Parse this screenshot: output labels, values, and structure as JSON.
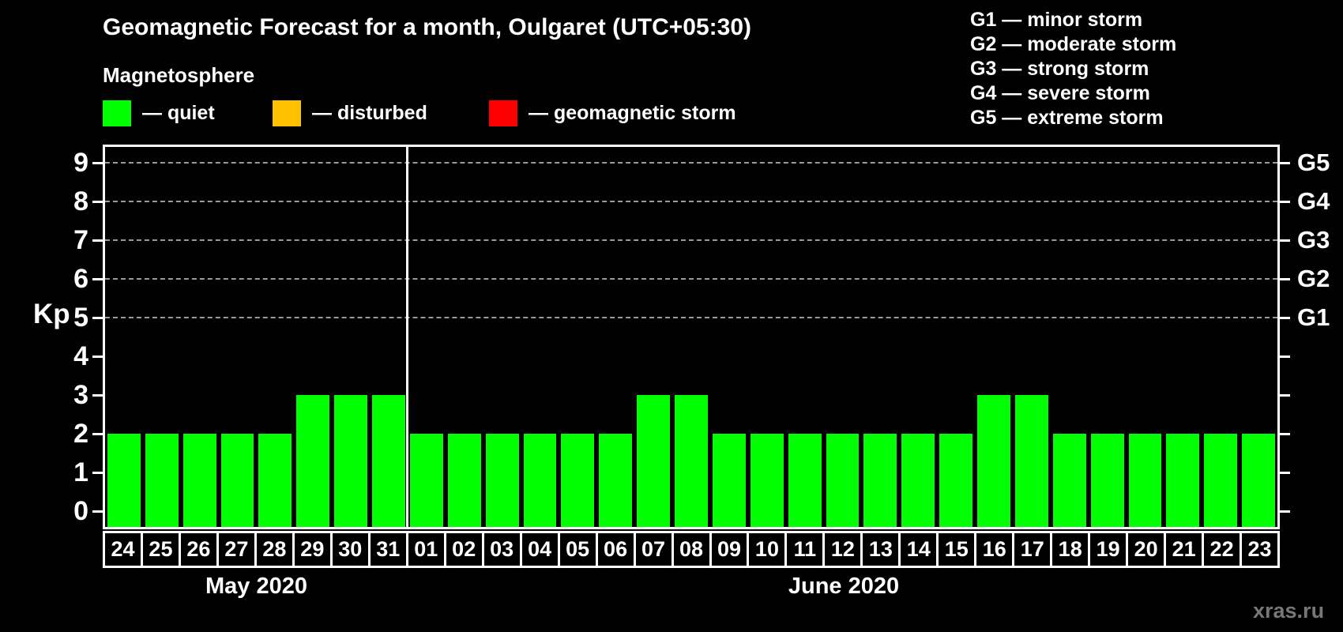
{
  "title": "Geomagnetic Forecast for a month, Oulgaret (UTC+05:30)",
  "subtitle": "Magnetosphere",
  "watermark": "xras.ru",
  "legend": {
    "items": [
      {
        "name": "quiet",
        "label": "— quiet",
        "color": "#00ff00"
      },
      {
        "name": "disturbed",
        "label": "— disturbed",
        "color": "#ffc000"
      },
      {
        "name": "geomagnetic-storm",
        "label": "— geomagnetic storm",
        "color": "#ff0000"
      }
    ]
  },
  "storm_scale": [
    "G1 — minor storm",
    "G2 — moderate storm",
    "G3 — strong storm",
    "G4 — severe storm",
    "G5 — extreme storm"
  ],
  "chart_data": {
    "type": "bar",
    "title": "Geomagnetic Forecast for a month, Oulgaret (UTC+05:30)",
    "xlabel": "",
    "ylabel": "Kp",
    "ylim": [
      0,
      9
    ],
    "y_ticks": [
      "0",
      "1",
      "2",
      "3",
      "4",
      "5",
      "6",
      "7",
      "8",
      "9"
    ],
    "grid_on": true,
    "grid_levels": [
      5,
      6,
      7,
      8,
      9
    ],
    "right_axis": [
      {
        "kp": 5,
        "label": "G1"
      },
      {
        "kp": 6,
        "label": "G2"
      },
      {
        "kp": 7,
        "label": "G3"
      },
      {
        "kp": 8,
        "label": "G4"
      },
      {
        "kp": 9,
        "label": "G5"
      }
    ],
    "bar_color": "#00ff00",
    "legend_position": "top-left",
    "series": [
      {
        "month": "May 2020",
        "categories": [
          "24",
          "25",
          "26",
          "27",
          "28",
          "29",
          "30",
          "31"
        ],
        "values": [
          2,
          2,
          2,
          2,
          2,
          3,
          3,
          3
        ]
      },
      {
        "month": "June 2020",
        "categories": [
          "01",
          "02",
          "03",
          "04",
          "05",
          "06",
          "07",
          "08",
          "09",
          "10",
          "11",
          "12",
          "13",
          "14",
          "15",
          "16",
          "17",
          "18",
          "19",
          "20",
          "21",
          "22",
          "23"
        ],
        "values": [
          2,
          2,
          2,
          2,
          2,
          2,
          3,
          3,
          2,
          2,
          2,
          2,
          2,
          2,
          2,
          3,
          3,
          2,
          2,
          2,
          2,
          2,
          2
        ]
      }
    ]
  }
}
